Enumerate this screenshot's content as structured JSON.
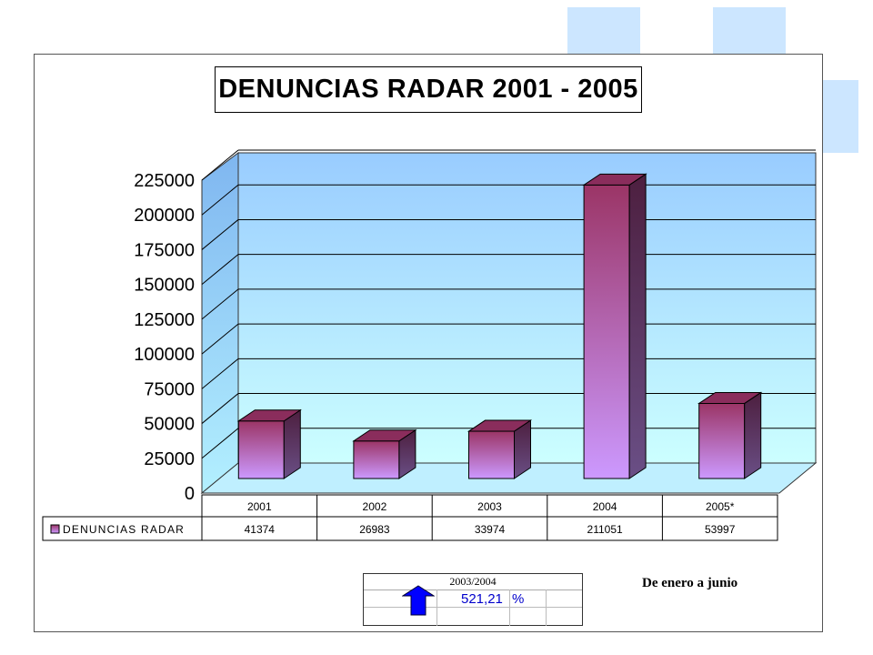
{
  "chart_data": {
    "type": "bar",
    "title": "DENUNCIAS RADAR 2001 - 2005",
    "categories": [
      "2001",
      "2002",
      "2003",
      "2004",
      "2005*"
    ],
    "series": [
      {
        "name": "DENUNCIAS RADAR",
        "values": [
          41374,
          26983,
          33974,
          211051,
          53997
        ],
        "value_labels": [
          "41374",
          "26983",
          "33974",
          "211051",
          "53997"
        ]
      }
    ],
    "ylim": [
      0,
      225000
    ],
    "yticks": [
      0,
      25000,
      50000,
      75000,
      100000,
      125000,
      150000,
      175000,
      200000,
      225000
    ],
    "ytick_labels": [
      "0",
      "25000",
      "50000",
      "75000",
      "100000",
      "125000",
      "150000",
      "175000",
      "200000",
      "225000"
    ],
    "grid": true,
    "style": "3d",
    "data_table": true,
    "colors": {
      "bar_top": "#9b3566",
      "bar_bottom": "#cc99ff",
      "bar_side": "#4d2244",
      "wall_top": "#99ccff",
      "wall_bottom": "#ccffff"
    }
  },
  "note": "De enero a junio",
  "growth_box": {
    "header": "2003/2004",
    "value": "521,21",
    "unit": "%",
    "arrow_icon": "up-arrow-icon",
    "arrow_color": "#0000ff"
  }
}
